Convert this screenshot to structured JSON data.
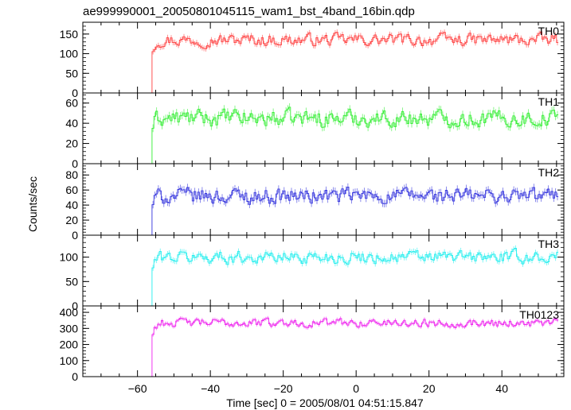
{
  "chart_data": {
    "type": "line",
    "title": "ae999990001_20050801045115_wam1_bst_4band_16bin.qdp",
    "xlabel": "Time [sec] 0 = 2005/08/01 04:51:15.847",
    "ylabel": "Counts/sec",
    "xlim": [
      -75,
      57
    ],
    "x_ticks": [
      -60,
      -40,
      -20,
      0,
      20,
      40
    ],
    "onset_x": -56,
    "panels": [
      {
        "name": "TH0",
        "color": "#ff4040",
        "ylim": [
          0,
          180
        ],
        "y_ticks": [
          0,
          50,
          100,
          150
        ],
        "baseline": 0,
        "mean": 135,
        "noise": 13
      },
      {
        "name": "TH1",
        "color": "#33ee33",
        "ylim": [
          0,
          70
        ],
        "y_ticks": [
          0,
          20,
          40,
          60
        ],
        "baseline": 0,
        "mean": 45,
        "noise": 7
      },
      {
        "name": "TH2",
        "color": "#3333dd",
        "ylim": [
          0,
          95
        ],
        "y_ticks": [
          0,
          20,
          40,
          60,
          80
        ],
        "baseline": 0,
        "mean": 52,
        "noise": 9
      },
      {
        "name": "TH3",
        "color": "#22eeee",
        "ylim": [
          0,
          145
        ],
        "y_ticks": [
          0,
          50,
          100
        ],
        "baseline": 0,
        "mean": 100,
        "noise": 11
      },
      {
        "name": "TH0123",
        "color": "#ee22ee",
        "ylim": [
          0,
          440
        ],
        "y_ticks": [
          0,
          100,
          200,
          300,
          400
        ],
        "baseline": 0,
        "mean": 335,
        "noise": 22
      }
    ]
  }
}
